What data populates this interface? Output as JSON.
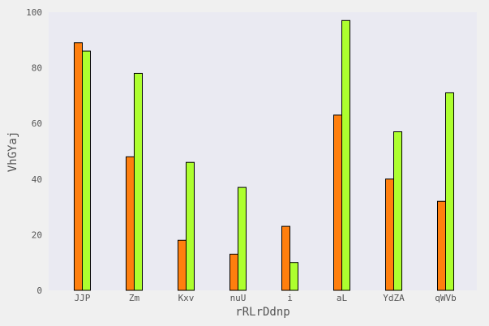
{
  "chart_data": {
    "type": "bar",
    "xlabel": "rRLrDdnp",
    "ylabel": "VhGYaj",
    "categories": [
      "JJP",
      "Zm",
      "Kxv",
      "nuU",
      "i",
      "aL",
      "YdZA",
      "qWVb"
    ],
    "series": [
      {
        "color": "#ff7f0e",
        "values": [
          89,
          48,
          18,
          13,
          23,
          63,
          40,
          32
        ]
      },
      {
        "color": "#adff2f",
        "values": [
          86,
          78,
          46,
          37,
          10,
          97,
          57,
          71
        ]
      }
    ],
    "ylim": [
      0,
      100
    ],
    "yticks": [
      0,
      20,
      40,
      60,
      80,
      100
    ],
    "grid": false,
    "plot_background": "#eaeaf2"
  }
}
